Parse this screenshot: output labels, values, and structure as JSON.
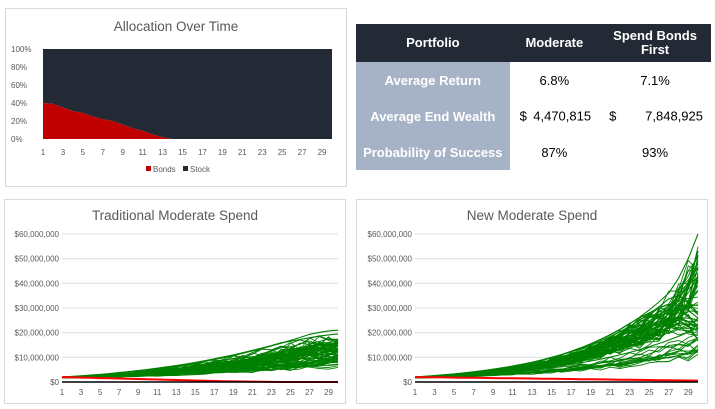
{
  "chart_data": [
    {
      "type": "area",
      "title": "Allocation Over Time",
      "x": [
        1,
        2,
        3,
        4,
        5,
        6,
        7,
        8,
        9,
        10,
        11,
        12,
        13,
        14,
        15,
        16,
        17,
        18,
        19,
        20,
        21,
        22,
        23,
        24,
        25,
        26,
        27,
        28,
        29,
        30
      ],
      "x_tick_labels": [
        "1",
        "3",
        "5",
        "7",
        "9",
        "11",
        "13",
        "15",
        "17",
        "19",
        "21",
        "23",
        "25",
        "27",
        "29"
      ],
      "y_tick_labels": [
        "0%",
        "20%",
        "40%",
        "60%",
        "80%",
        "100%"
      ],
      "ylim": [
        0,
        100
      ],
      "stacked": true,
      "series": [
        {
          "name": "Bonds",
          "color": "#c00000",
          "values": [
            40,
            39,
            35,
            31,
            29,
            25,
            22,
            20,
            16,
            12,
            9,
            5,
            2,
            0,
            0,
            0,
            0,
            0,
            0,
            0,
            0,
            0,
            0,
            0,
            0,
            0,
            0,
            0,
            0,
            0
          ]
        },
        {
          "name": "Stock",
          "color": "#232a35",
          "values": [
            60,
            61,
            65,
            69,
            71,
            75,
            78,
            80,
            84,
            88,
            91,
            95,
            98,
            100,
            100,
            100,
            100,
            100,
            100,
            100,
            100,
            100,
            100,
            100,
            100,
            100,
            100,
            100,
            100,
            100
          ]
        }
      ],
      "legend": "bottom"
    },
    {
      "type": "line",
      "title": "Traditional Moderate Spend",
      "x": [
        1,
        2,
        3,
        4,
        5,
        6,
        7,
        8,
        9,
        10,
        11,
        12,
        13,
        14,
        15,
        16,
        17,
        18,
        19,
        20,
        21,
        22,
        23,
        24,
        25,
        26,
        27,
        28,
        29,
        30
      ],
      "x_tick_labels": [
        "1",
        "3",
        "5",
        "7",
        "9",
        "11",
        "13",
        "15",
        "17",
        "19",
        "21",
        "23",
        "25",
        "27",
        "29"
      ],
      "y_tick_labels": [
        "$0",
        "$10,000,000",
        "$20,000,000",
        "$30,000,000",
        "$40,000,000",
        "$50,000,000",
        "$60,000,000"
      ],
      "ylim": [
        0,
        60000000
      ],
      "legend": "none",
      "series": [
        {
          "color": "#008000",
          "values": [
            2000000,
            2100000,
            2200000,
            2300000,
            2400000,
            2550000,
            2700000,
            2850000,
            3000000,
            3150000,
            3300000,
            3500000,
            3700000,
            3900000,
            4100000,
            4300000,
            4500000,
            4700000,
            4950000,
            5200000,
            5450000,
            5700000,
            6000000,
            6300000,
            6600000,
            6900000,
            7200000,
            7500000,
            7800000,
            8100000
          ]
        },
        {
          "color": "#008000",
          "values": [
            2000000,
            2150000,
            2350000,
            2500000,
            2700000,
            2900000,
            3150000,
            3400000,
            3650000,
            3950000,
            4250000,
            4600000,
            4950000,
            5350000,
            5750000,
            6200000,
            6700000,
            7200000,
            7700000,
            8300000,
            8900000,
            9500000,
            10200000,
            10900000,
            11600000,
            12400000,
            13200000,
            14000000,
            14800000,
            15600000
          ]
        },
        {
          "color": "#008000",
          "values": [
            2000000,
            2200000,
            2450000,
            2700000,
            3000000,
            3300000,
            3650000,
            4000000,
            4400000,
            4850000,
            5300000,
            5800000,
            6350000,
            6950000,
            7600000,
            8300000,
            9050000,
            9850000,
            10700000,
            11600000,
            12550000,
            13550000,
            14600000,
            15700000,
            16850000,
            18050000,
            19300000,
            20100000,
            20700000,
            21000000
          ]
        },
        {
          "color": "#008000",
          "values": [
            2000000,
            2050000,
            2100000,
            2150000,
            2200000,
            2300000,
            2400000,
            2500000,
            2600000,
            2700000,
            2850000,
            3000000,
            3150000,
            3300000,
            3450000,
            3650000,
            3850000,
            4050000,
            4250000,
            4450000,
            4700000,
            4950000,
            5200000,
            5450000,
            5700000,
            6000000,
            6300000,
            6600000,
            6900000,
            7200000
          ]
        },
        {
          "color": "#008000",
          "values": [
            2000000,
            2250000,
            2500000,
            2800000,
            3100000,
            3450000,
            3800000,
            4200000,
            4650000,
            5100000,
            5600000,
            6150000,
            6700000,
            7300000,
            7950000,
            8650000,
            9400000,
            10200000,
            11000000,
            11900000,
            12800000,
            13800000,
            14800000,
            15900000,
            16500000,
            17200000,
            17900000,
            18600000,
            19100000,
            19500000
          ]
        },
        {
          "color": "#008000",
          "values": [
            2000000,
            2100000,
            2250000,
            2400000,
            2600000,
            2800000,
            3000000,
            3250000,
            3500000,
            3750000,
            4050000,
            4350000,
            4700000,
            5050000,
            5450000,
            5850000,
            6300000,
            6750000,
            7250000,
            7750000,
            8300000,
            8900000,
            9500000,
            10150000,
            10800000,
            11500000,
            12250000,
            13000000,
            13800000,
            14600000
          ]
        }
      ],
      "floor_series": {
        "color": "#ff0000",
        "values": [
          2000000,
          1900000,
          1800000,
          1700000,
          1600000,
          1500000,
          1400000,
          1300000,
          1200000,
          1100000,
          1000000,
          900000,
          800000,
          700000,
          600000,
          500000,
          400000,
          300000,
          250000,
          200000,
          150000,
          100000,
          50000,
          0,
          0,
          0,
          0,
          0,
          0,
          0
        ]
      }
    },
    {
      "type": "line",
      "title": "New Moderate Spend",
      "x": [
        1,
        2,
        3,
        4,
        5,
        6,
        7,
        8,
        9,
        10,
        11,
        12,
        13,
        14,
        15,
        16,
        17,
        18,
        19,
        20,
        21,
        22,
        23,
        24,
        25,
        26,
        27,
        28,
        29,
        30
      ],
      "x_tick_labels": [
        "1",
        "3",
        "5",
        "7",
        "9",
        "11",
        "13",
        "15",
        "17",
        "19",
        "21",
        "23",
        "25",
        "27",
        "29"
      ],
      "y_tick_labels": [
        "$0",
        "$10,000,000",
        "$20,000,000",
        "$30,000,000",
        "$40,000,000",
        "$50,000,000",
        "$60,000,000"
      ],
      "ylim": [
        0,
        60000000
      ],
      "legend": "none",
      "series": [
        {
          "color": "#008000",
          "values": [
            2000000,
            2200000,
            2450000,
            2750000,
            3100000,
            3500000,
            3950000,
            4450000,
            5000000,
            5600000,
            6250000,
            7000000,
            7850000,
            8800000,
            9850000,
            11000000,
            12300000,
            13750000,
            15350000,
            17100000,
            19050000,
            21200000,
            23600000,
            26250000,
            29200000,
            32450000,
            36050000,
            42000000,
            50000000,
            60000000
          ]
        },
        {
          "color": "#008000",
          "values": [
            2000000,
            2150000,
            2350000,
            2550000,
            2800000,
            3050000,
            3350000,
            3700000,
            4050000,
            4450000,
            4900000,
            5400000,
            5950000,
            6550000,
            7200000,
            7950000,
            8750000,
            9650000,
            10650000,
            11750000,
            12950000,
            14300000,
            15800000,
            17450000,
            19250000,
            21250000,
            25000000,
            30000000,
            40000000,
            53000000
          ]
        },
        {
          "color": "#008000",
          "values": [
            2000000,
            2300000,
            2600000,
            2950000,
            3300000,
            3700000,
            4150000,
            4650000,
            5200000,
            5800000,
            6450000,
            7200000,
            8000000,
            8900000,
            9900000,
            11000000,
            12200000,
            13500000,
            15000000,
            16600000,
            18400000,
            20400000,
            22600000,
            25000000,
            27600000,
            30500000,
            33700000,
            35000000,
            32000000,
            28000000
          ]
        },
        {
          "color": "#008000",
          "values": [
            2000000,
            2100000,
            2250000,
            2400000,
            2600000,
            2800000,
            3050000,
            3300000,
            3600000,
            3900000,
            4250000,
            4650000,
            5050000,
            5500000,
            6000000,
            6550000,
            7150000,
            7800000,
            8500000,
            9250000,
            10100000,
            11000000,
            12000000,
            13100000,
            14300000,
            15600000,
            17000000,
            18500000,
            20200000,
            22000000
          ]
        },
        {
          "color": "#008000",
          "values": [
            2000000,
            2050000,
            2150000,
            2250000,
            2350000,
            2500000,
            2650000,
            2800000,
            3000000,
            3200000,
            3400000,
            3650000,
            3900000,
            4150000,
            4450000,
            4750000,
            5100000,
            5450000,
            5850000,
            6250000,
            6700000,
            7150000,
            7650000,
            8200000,
            8750000,
            9350000,
            10000000,
            10700000,
            11400000,
            12200000
          ]
        },
        {
          "color": "#008000",
          "values": [
            2000000,
            2250000,
            2550000,
            2850000,
            3200000,
            3600000,
            4050000,
            4550000,
            5100000,
            5700000,
            6400000,
            7150000,
            8000000,
            8950000,
            10000000,
            11150000,
            12450000,
            13900000,
            15500000,
            17250000,
            19200000,
            21350000,
            23750000,
            26000000,
            28000000,
            30000000,
            31500000,
            31000000,
            29000000,
            26000000
          ]
        }
      ],
      "floor_series": {
        "color": "#ff0000",
        "values": [
          2000000,
          1950000,
          1900000,
          1850000,
          1800000,
          1750000,
          1700000,
          1650000,
          1600000,
          1550000,
          1500000,
          1450000,
          1400000,
          1350000,
          1300000,
          1250000,
          1200000,
          1150000,
          1100000,
          1050000,
          1000000,
          950000,
          900000,
          850000,
          800000,
          750000,
          700000,
          650000,
          600000,
          550000
        ]
      }
    }
  ],
  "table": {
    "headers": [
      "Portfolio",
      "Moderate",
      "Spend Bonds First"
    ],
    "rows": [
      {
        "label": "Average Return",
        "moderate": "6.8%",
        "bonds_first": "7.1%"
      },
      {
        "label": "Average End Wealth",
        "currency": "$",
        "moderate": "4,470,815",
        "bonds_first": "7,848,925"
      },
      {
        "label": "Probability of Success",
        "moderate": "87%",
        "bonds_first": "93%"
      }
    ]
  },
  "colors": {
    "header_bg": "#232a35",
    "row_label_bg": "#a6b3c6",
    "bonds": "#c00000",
    "stock": "#232a35",
    "paths": "#008000",
    "floor": "#ff0000"
  }
}
